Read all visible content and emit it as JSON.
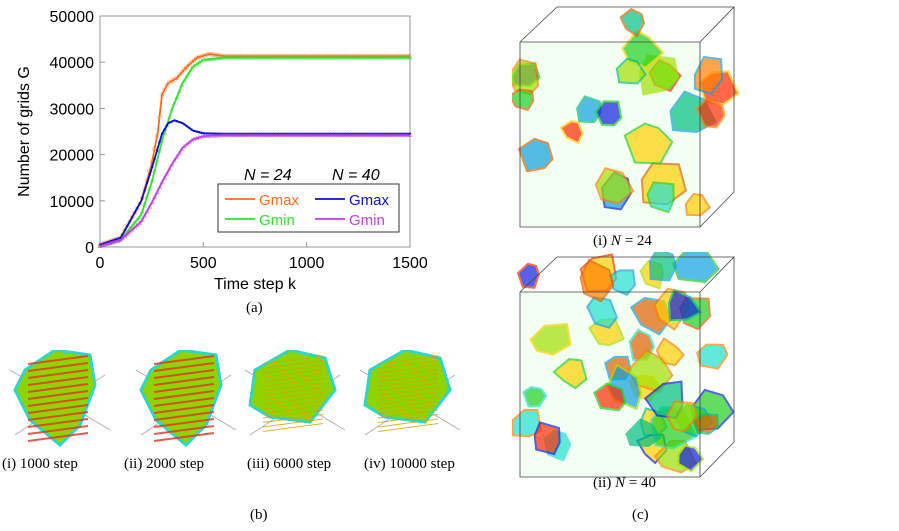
{
  "chart_data": {
    "type": "line",
    "xlabel": "Time step  k",
    "ylabel": "Number of grids  G",
    "xlim": [
      0,
      1500
    ],
    "ylim": [
      0,
      50000
    ],
    "xticks": [
      "0",
      "500",
      "1000",
      "1500"
    ],
    "yticks": [
      "0",
      "10000",
      "20000",
      "30000",
      "40000",
      "50000"
    ],
    "grid": false,
    "legend_placement": "bottom-right",
    "legend_groups": [
      "N = 24",
      "N = 40"
    ],
    "series": [
      {
        "name": "Gmax",
        "group": "N = 24",
        "color": "#ff6a1a",
        "marker": "circle",
        "x": [
          0,
          100,
          200,
          250,
          280,
          300,
          330,
          370,
          420,
          470,
          530,
          600,
          1500
        ],
        "y": [
          500,
          2000,
          10000,
          18000,
          25000,
          33000,
          35500,
          36500,
          39000,
          41000,
          41800,
          41300,
          41300
        ]
      },
      {
        "name": "Gmin",
        "group": "N = 24",
        "color": "#33e033",
        "marker": "triangle",
        "x": [
          0,
          100,
          200,
          250,
          300,
          350,
          400,
          450,
          500,
          600,
          1500
        ],
        "y": [
          200,
          1500,
          7000,
          14000,
          23000,
          30000,
          35500,
          39000,
          40500,
          41000,
          41000
        ]
      },
      {
        "name": "Gmax",
        "group": "N = 40",
        "color": "#0a10d0",
        "marker": "dot",
        "x": [
          0,
          100,
          200,
          250,
          300,
          330,
          360,
          400,
          450,
          500,
          600,
          1500
        ],
        "y": [
          500,
          2000,
          10000,
          17000,
          24500,
          26800,
          27400,
          26800,
          25200,
          24600,
          24500,
          24500
        ]
      },
      {
        "name": "Gmin",
        "group": "N = 40",
        "color": "#c040e0",
        "marker": "triangle",
        "x": [
          0,
          100,
          200,
          250,
          300,
          350,
          400,
          450,
          500,
          600,
          1500
        ],
        "y": [
          200,
          1500,
          5500,
          9500,
          14000,
          18000,
          21500,
          23300,
          24000,
          24200,
          24200
        ]
      }
    ]
  },
  "captions": {
    "a": "(a)",
    "b": "(b)",
    "c": "(c)",
    "b_items": [
      "(i) 1000 step",
      "(ii) 2000 step",
      "(iii) 6000 step",
      "(iv) 10000 step"
    ],
    "c_items": [
      {
        "prefix": "(i) ",
        "var": "N",
        "rest": " = 24"
      },
      {
        "prefix": "(ii) ",
        "var": "N",
        "rest": " = 40"
      }
    ]
  }
}
